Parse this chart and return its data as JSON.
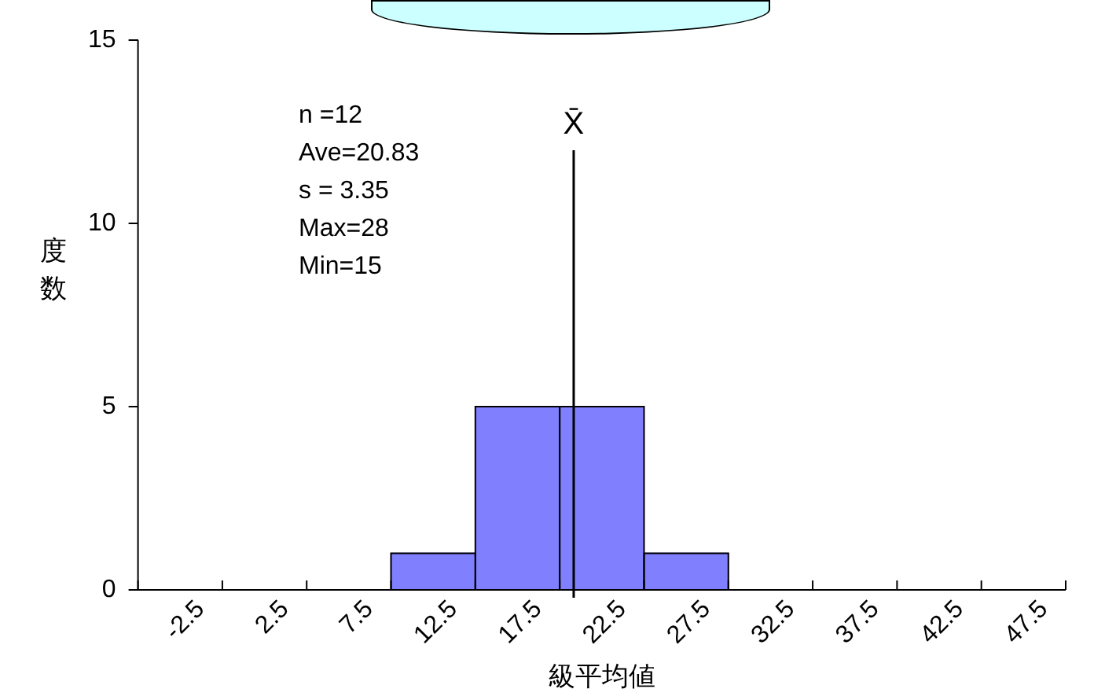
{
  "chart_data": {
    "type": "histogram",
    "xlabel": "級平均値",
    "ylabel": "度数",
    "bins": [
      -5,
      0,
      5,
      10,
      15,
      20,
      25,
      30,
      35,
      40,
      45,
      50
    ],
    "values": [
      0,
      0,
      0,
      1,
      5,
      5,
      1,
      0,
      0,
      0,
      0
    ],
    "color": "#8080ff",
    "xlim": [
      -5,
      50
    ],
    "xticks": [
      -2.5,
      2.5,
      7.5,
      12.5,
      17.5,
      22.5,
      27.5,
      32.5,
      37.5,
      42.5,
      47.5
    ],
    "ylim": [
      0,
      15
    ],
    "yticks": [
      0,
      5,
      10,
      15
    ],
    "grid": false,
    "legend": false,
    "ref_lines": [
      {
        "axis": "x",
        "value": 20.83,
        "label": "X̄",
        "color": "#000000"
      }
    ],
    "annotations": [
      "n =12",
      "Ave=20.83",
      "s = 3.35",
      "Max=28",
      "Min=15"
    ]
  }
}
